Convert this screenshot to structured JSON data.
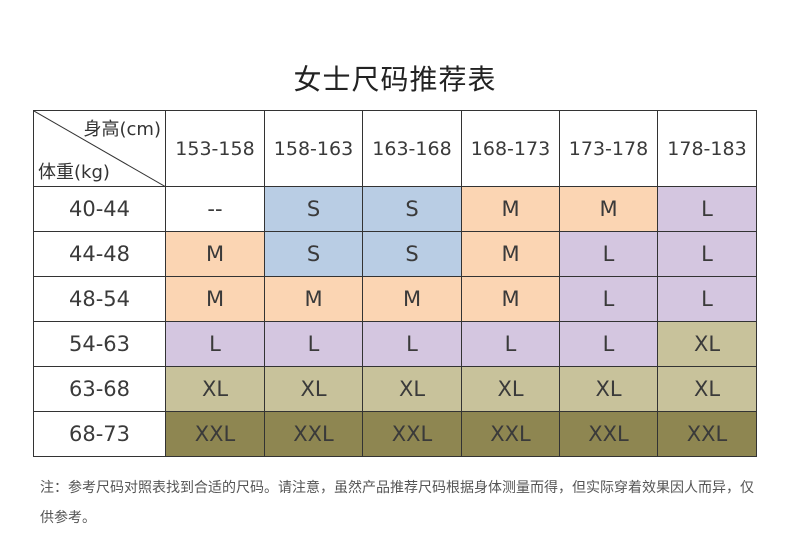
{
  "title": "女士尺码推荐表",
  "table": {
    "corner_top": "身高(cm)",
    "corner_bottom": "体重(kg)",
    "height_ranges": [
      "153-158",
      "158-163",
      "163-168",
      "168-173",
      "173-178",
      "178-183"
    ],
    "rows": [
      {
        "weight": "40-44",
        "sizes": [
          "--",
          "S",
          "S",
          "M",
          "M",
          "L"
        ]
      },
      {
        "weight": "44-48",
        "sizes": [
          "M",
          "S",
          "S",
          "M",
          "L",
          "L"
        ]
      },
      {
        "weight": "48-54",
        "sizes": [
          "M",
          "M",
          "M",
          "M",
          "L",
          "L"
        ]
      },
      {
        "weight": "54-63",
        "sizes": [
          "L",
          "L",
          "L",
          "L",
          "L",
          "XL"
        ]
      },
      {
        "weight": "63-68",
        "sizes": [
          "XL",
          "XL",
          "XL",
          "XL",
          "XL",
          "XL"
        ]
      },
      {
        "weight": "68-73",
        "sizes": [
          "XXL",
          "XXL",
          "XXL",
          "XXL",
          "XXL",
          "XXL"
        ]
      }
    ]
  },
  "size_colors": {
    "S": "#b9cde4",
    "M": "#fbd5b3",
    "L": "#d4c6e0",
    "XL": "#c8c29b",
    "XXL": "#8e8651",
    "--": "#ffffff"
  },
  "note": "注：参考尺码对照表找到合适的尺码。请注意，虽然产品推荐尺码根据身体测量而得，但实际穿着效果因人而异，仅供参考。"
}
